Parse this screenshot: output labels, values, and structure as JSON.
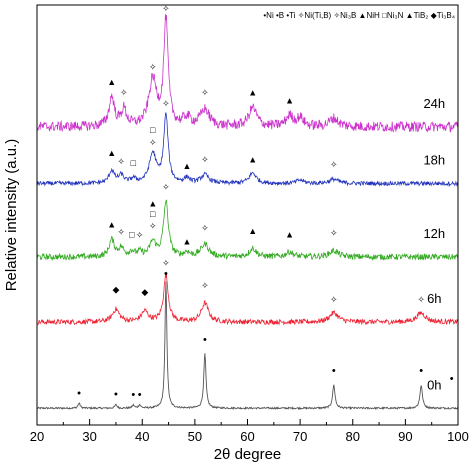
{
  "chart_data": {
    "type": "line",
    "xlabel": "2θ degree",
    "ylabel": "Relative intensity (a.u.)",
    "xlim": [
      20,
      100
    ],
    "xticks": [
      20,
      30,
      40,
      50,
      60,
      70,
      80,
      90,
      100
    ],
    "grid": false,
    "legend": "top-right",
    "legend_entries": [
      "•Ni",
      "•B",
      "•Ti",
      "✧Ni(Ti,B)",
      "✧Ni₃B",
      "▲NiH",
      "□Ni₃N",
      "▲TiB₂",
      "◆Ti₃B₄"
    ],
    "series": [
      {
        "name": "0h",
        "color": "#555555",
        "baseline": 0.04,
        "noise": 0.002,
        "peaks": [
          [
            28,
            0.012,
            0.25
          ],
          [
            35,
            0.008,
            0.25
          ],
          [
            38.3,
            0.007,
            0.25
          ],
          [
            39.5,
            0.008,
            0.25
          ],
          [
            44.5,
            0.3,
            0.22
          ],
          [
            51.9,
            0.13,
            0.25
          ],
          [
            76.4,
            0.055,
            0.28
          ],
          [
            93.0,
            0.055,
            0.28
          ]
        ]
      },
      {
        "name": "6h",
        "color": "#ee2233",
        "baseline": 0.245,
        "noise": 0.006,
        "peaks": [
          [
            35.0,
            0.03,
            0.8
          ],
          [
            40.5,
            0.025,
            0.8
          ],
          [
            44.5,
            0.11,
            0.55
          ],
          [
            51.9,
            0.045,
            0.8
          ],
          [
            76.4,
            0.022,
            1.0
          ],
          [
            93.0,
            0.022,
            1.0
          ]
        ]
      },
      {
        "name": "12h",
        "color": "#33aa22",
        "baseline": 0.4,
        "noise": 0.007,
        "peaks": [
          [
            34.2,
            0.04,
            0.6
          ],
          [
            36.0,
            0.02,
            0.6
          ],
          [
            38.0,
            0.012,
            0.6
          ],
          [
            39.5,
            0.01,
            0.6
          ],
          [
            42.0,
            0.035,
            0.7
          ],
          [
            44.5,
            0.13,
            0.55
          ],
          [
            48.5,
            0.01,
            0.6
          ],
          [
            51.9,
            0.03,
            0.9
          ],
          [
            61.0,
            0.02,
            0.8
          ],
          [
            68.0,
            0.012,
            0.8
          ],
          [
            76.4,
            0.015,
            1.0
          ]
        ]
      },
      {
        "name": "18h",
        "color": "#2233bb",
        "baseline": 0.575,
        "noise": 0.005,
        "peaks": [
          [
            34.2,
            0.03,
            0.6
          ],
          [
            36.0,
            0.018,
            0.6
          ],
          [
            38.3,
            0.01,
            0.6
          ],
          [
            42.0,
            0.07,
            0.8
          ],
          [
            44.5,
            0.16,
            0.5
          ],
          [
            48.5,
            0.012,
            0.6
          ],
          [
            51.9,
            0.02,
            0.9
          ],
          [
            61.0,
            0.025,
            0.8
          ],
          [
            70.0,
            0.008,
            0.8
          ],
          [
            76.4,
            0.01,
            1.0
          ]
        ]
      },
      {
        "name": "24h",
        "color": "#cc33cc",
        "baseline": 0.71,
        "noise": 0.012,
        "peaks": [
          [
            34.2,
            0.07,
            0.6
          ],
          [
            36.5,
            0.04,
            0.6
          ],
          [
            42.0,
            0.11,
            0.9
          ],
          [
            44.5,
            0.25,
            0.5
          ],
          [
            48.5,
            0.02,
            0.8
          ],
          [
            51.9,
            0.04,
            1.0
          ],
          [
            61.0,
            0.045,
            0.9
          ],
          [
            68.0,
            0.025,
            0.8
          ],
          [
            70.0,
            0.02,
            0.8
          ],
          [
            76.4,
            0.02,
            1.0
          ]
        ]
      }
    ],
    "markers": [
      {
        "symbol": "•",
        "x": 28,
        "y": 0.068
      },
      {
        "symbol": "•",
        "x": 35,
        "y": 0.065
      },
      {
        "symbol": "•",
        "x": 38.3,
        "y": 0.064
      },
      {
        "symbol": "•",
        "x": 39.5,
        "y": 0.064
      },
      {
        "symbol": "•",
        "x": 44.5,
        "y": 0.352
      },
      {
        "symbol": "•",
        "x": 51.9,
        "y": 0.195
      },
      {
        "symbol": "•",
        "x": 76.4,
        "y": 0.122
      },
      {
        "symbol": "•",
        "x": 93.0,
        "y": 0.122
      },
      {
        "symbol": "•",
        "x": 98.8,
        "y": 0.102
      },
      {
        "symbol": "◆",
        "x": 35.0,
        "y": 0.315
      },
      {
        "symbol": "◆",
        "x": 40.5,
        "y": 0.31
      },
      {
        "symbol": "✧",
        "x": 44.5,
        "y": 0.378
      },
      {
        "symbol": "✧",
        "x": 51.9,
        "y": 0.325
      },
      {
        "symbol": "✧",
        "x": 76.4,
        "y": 0.292
      },
      {
        "symbol": "✧",
        "x": 93.0,
        "y": 0.292
      },
      {
        "symbol": "▲",
        "x": 34.2,
        "y": 0.47
      },
      {
        "symbol": "✧",
        "x": 36.0,
        "y": 0.452
      },
      {
        "symbol": "□",
        "x": 38.0,
        "y": 0.447
      },
      {
        "symbol": "✧",
        "x": 39.5,
        "y": 0.445
      },
      {
        "symbol": "✧",
        "x": 42.0,
        "y": 0.467
      },
      {
        "symbol": "□",
        "x": 42.0,
        "y": 0.495
      },
      {
        "symbol": "▲",
        "x": 42.0,
        "y": 0.52
      },
      {
        "symbol": "✧",
        "x": 44.5,
        "y": 0.56
      },
      {
        "symbol": "▲",
        "x": 48.5,
        "y": 0.43
      },
      {
        "symbol": "✧",
        "x": 51.9,
        "y": 0.462
      },
      {
        "symbol": "▲",
        "x": 61.0,
        "y": 0.455
      },
      {
        "symbol": "▲",
        "x": 68.0,
        "y": 0.447
      },
      {
        "symbol": "✧",
        "x": 76.4,
        "y": 0.45
      },
      {
        "symbol": "▲",
        "x": 34.2,
        "y": 0.64
      },
      {
        "symbol": "✧",
        "x": 36.0,
        "y": 0.62
      },
      {
        "symbol": "□",
        "x": 38.3,
        "y": 0.617
      },
      {
        "symbol": "✧",
        "x": 42.0,
        "y": 0.665
      },
      {
        "symbol": "□",
        "x": 42.0,
        "y": 0.695
      },
      {
        "symbol": "✧",
        "x": 44.5,
        "y": 0.758
      },
      {
        "symbol": "▲",
        "x": 48.5,
        "y": 0.61
      },
      {
        "symbol": "✧",
        "x": 51.9,
        "y": 0.625
      },
      {
        "symbol": "▲",
        "x": 61.0,
        "y": 0.625
      },
      {
        "symbol": "✧",
        "x": 76.4,
        "y": 0.613
      },
      {
        "symbol": "▲",
        "x": 34.2,
        "y": 0.81
      },
      {
        "symbol": "✧",
        "x": 36.5,
        "y": 0.785
      },
      {
        "symbol": "✧",
        "x": 42.0,
        "y": 0.845
      },
      {
        "symbol": "✧",
        "x": 44.5,
        "y": 0.985
      },
      {
        "symbol": "✧",
        "x": 51.9,
        "y": 0.785
      },
      {
        "symbol": "▲",
        "x": 61.0,
        "y": 0.785
      },
      {
        "symbol": "▲",
        "x": 68.0,
        "y": 0.765
      }
    ]
  }
}
